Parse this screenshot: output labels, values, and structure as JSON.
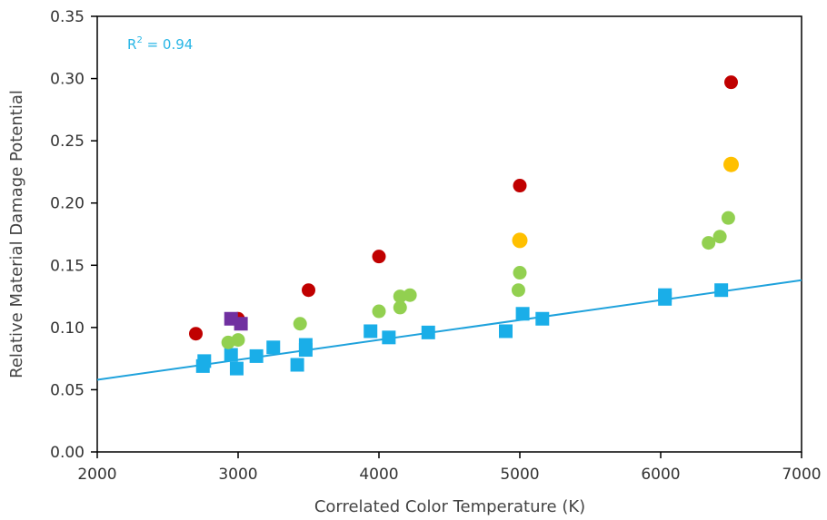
{
  "chart_data": {
    "type": "scatter",
    "xlabel": "Correlated Color Temperature (K)",
    "ylabel": "Relative Material Damage Potential",
    "xlim": [
      2000,
      7000
    ],
    "ylim": [
      0,
      0.35
    ],
    "xticks": [
      "2000",
      "3000",
      "4000",
      "5000",
      "6000",
      "7000"
    ],
    "yticks": [
      "0.00",
      "0.05",
      "0.10",
      "0.15",
      "0.20",
      "0.25",
      "0.30",
      "0.35"
    ],
    "grid": false,
    "annotation": {
      "text_base": "R",
      "text_sup": "2",
      "text_rest": " = 0.94",
      "color": "#29b6e6"
    },
    "trendline": {
      "x": [
        2000,
        7000
      ],
      "y": [
        0.058,
        0.138
      ],
      "color": "#1fa2dc"
    },
    "series": [
      {
        "marker": "square",
        "color": "#1aaee8",
        "points": [
          [
            2750,
            0.069
          ],
          [
            2760,
            0.073
          ],
          [
            2950,
            0.078
          ],
          [
            2990,
            0.067
          ],
          [
            3130,
            0.077
          ],
          [
            3250,
            0.084
          ],
          [
            3420,
            0.07
          ],
          [
            3480,
            0.082
          ],
          [
            3480,
            0.086
          ],
          [
            3940,
            0.097
          ],
          [
            4070,
            0.092
          ],
          [
            4350,
            0.096
          ],
          [
            4900,
            0.097
          ],
          [
            5020,
            0.111
          ],
          [
            5160,
            0.107
          ],
          [
            6030,
            0.123
          ],
          [
            6030,
            0.126
          ],
          [
            6430,
            0.13
          ]
        ]
      },
      {
        "marker": "circle",
        "color": "#92d050",
        "points": [
          [
            2930,
            0.088
          ],
          [
            3000,
            0.09
          ],
          [
            3440,
            0.103
          ],
          [
            4000,
            0.113
          ],
          [
            4150,
            0.116
          ],
          [
            4150,
            0.125
          ],
          [
            4220,
            0.126
          ],
          [
            4990,
            0.13
          ],
          [
            5000,
            0.144
          ],
          [
            6340,
            0.168
          ],
          [
            6420,
            0.173
          ],
          [
            6480,
            0.188
          ]
        ]
      },
      {
        "marker": "circle",
        "color": "#c00000",
        "points": [
          [
            2700,
            0.095
          ],
          [
            3000,
            0.107
          ],
          [
            3500,
            0.13
          ],
          [
            4000,
            0.157
          ],
          [
            5000,
            0.214
          ],
          [
            6500,
            0.297
          ]
        ]
      },
      {
        "marker": "circle-large",
        "color": "#ffc000",
        "points": [
          [
            5000,
            0.17
          ],
          [
            6500,
            0.231
          ]
        ]
      },
      {
        "marker": "square",
        "color": "#7030a0",
        "points": [
          [
            2950,
            0.107
          ],
          [
            3020,
            0.103
          ]
        ]
      }
    ]
  }
}
